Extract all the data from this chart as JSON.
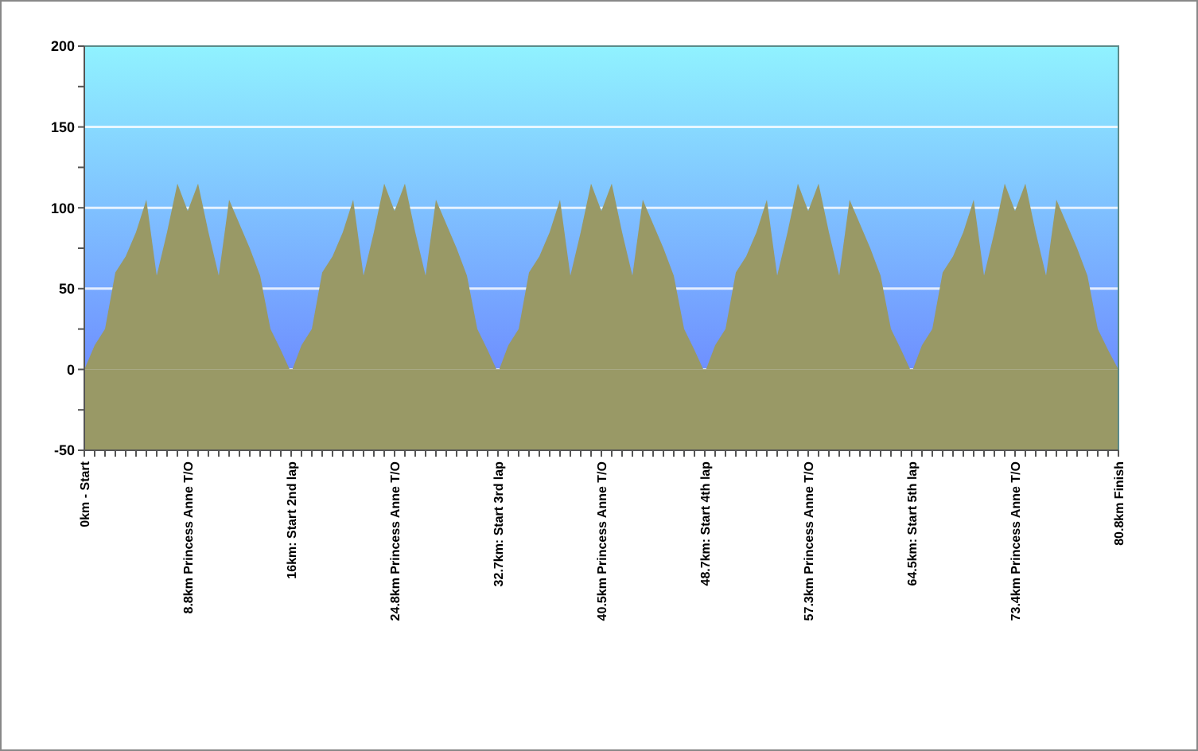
{
  "chart_data": {
    "type": "area",
    "categories": [
      "0km - Start",
      null,
      null,
      null,
      null,
      null,
      null,
      null,
      null,
      null,
      "8.8km Princess Anne T/O",
      null,
      null,
      null,
      null,
      null,
      null,
      null,
      null,
      null,
      "16km: Start 2nd lap",
      null,
      null,
      null,
      null,
      null,
      null,
      null,
      null,
      null,
      "24.8km Princess Anne T/O",
      null,
      null,
      null,
      null,
      null,
      null,
      null,
      null,
      null,
      "32.7km: Start 3rd lap",
      null,
      null,
      null,
      null,
      null,
      null,
      null,
      null,
      null,
      "40.5km Princess Anne T/O",
      null,
      null,
      null,
      null,
      null,
      null,
      null,
      null,
      null,
      "48.7km: Start 4th lap",
      null,
      null,
      null,
      null,
      null,
      null,
      null,
      null,
      null,
      "57.3km Princess Anne T/O",
      null,
      null,
      null,
      null,
      null,
      null,
      null,
      null,
      null,
      "64.5km: Start 5th lap",
      null,
      null,
      null,
      null,
      null,
      null,
      null,
      null,
      null,
      "73.4km Princess Anne T/O",
      null,
      null,
      null,
      null,
      null,
      null,
      null,
      null,
      null,
      "80.8km Finish"
    ],
    "series": [
      {
        "color": "#999966",
        "values": [
          0,
          15,
          25,
          60,
          70,
          85,
          105,
          58,
          85,
          115,
          98,
          115,
          85,
          58,
          105,
          90,
          75,
          58,
          25,
          12,
          -2,
          15,
          25,
          60,
          70,
          85,
          105,
          58,
          85,
          115,
          98,
          115,
          85,
          58,
          105,
          90,
          75,
          58,
          25,
          12,
          -2,
          15,
          25,
          60,
          70,
          85,
          105,
          58,
          85,
          115,
          98,
          115,
          85,
          58,
          105,
          90,
          75,
          58,
          25,
          12,
          -2,
          15,
          25,
          60,
          70,
          85,
          105,
          58,
          85,
          115,
          98,
          115,
          85,
          58,
          105,
          90,
          75,
          58,
          25,
          12,
          -2,
          15,
          25,
          60,
          70,
          85,
          105,
          58,
          85,
          115,
          98,
          115,
          85,
          58,
          105,
          90,
          75,
          58,
          25,
          12,
          0
        ]
      }
    ],
    "ylim": [
      -50,
      200
    ],
    "yticks": [
      -50,
      {
        "value": -25,
        "label": null
      },
      0,
      {
        "value": 25,
        "label": null
      },
      50,
      {
        "value": 75,
        "label": null
      },
      100,
      {
        "value": 125,
        "label": null
      },
      150,
      {
        "value": 175,
        "label": null
      },
      200
    ],
    "bands": [
      {
        "axis": "y",
        "from": -50,
        "to": 0,
        "color": "#999966"
      }
    ],
    "grid": "y"
  }
}
